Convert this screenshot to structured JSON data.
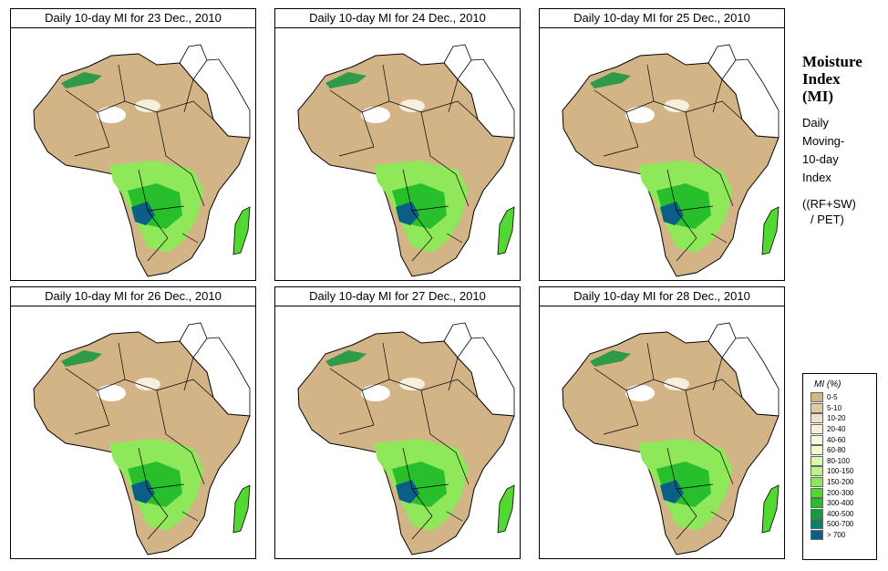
{
  "panels": [
    {
      "title": "Daily 10-day MI for  23 Dec., 2010"
    },
    {
      "title": "Daily 10-day MI for  24 Dec., 2010"
    },
    {
      "title": "Daily 10-day MI for  25 Dec., 2010"
    },
    {
      "title": "Daily 10-day MI for  26 Dec., 2010"
    },
    {
      "title": "Daily 10-day MI for  27 Dec., 2010"
    },
    {
      "title": "Daily 10-day MI for  28 Dec., 2010"
    }
  ],
  "side": {
    "title_line1": "Moisture",
    "title_line2": "Index",
    "title_line3": "(MI)",
    "desc_line1": "Daily",
    "desc_line2": "Moving-",
    "desc_line3": "10-day",
    "desc_line4": "Index",
    "formula_line1": "((RF+SW)",
    "formula_line2": "/ PET)"
  },
  "legend": {
    "title": "MI (%)",
    "items": [
      {
        "label": "0-5",
        "color": "#d2b487"
      },
      {
        "label": "5-10",
        "color": "#e0c9a6"
      },
      {
        "label": "10-20",
        "color": "#eee0c8"
      },
      {
        "label": "20-40",
        "color": "#f8eedd"
      },
      {
        "label": "40-60",
        "color": "#fbfbdc"
      },
      {
        "label": "60-80",
        "color": "#f1fac8"
      },
      {
        "label": "80-100",
        "color": "#ddf7ad"
      },
      {
        "label": "100-150",
        "color": "#bdf28a"
      },
      {
        "label": "150-200",
        "color": "#8ee85a"
      },
      {
        "label": "200-300",
        "color": "#52d830"
      },
      {
        "label": "300-400",
        "color": "#28be2c"
      },
      {
        "label": "400-500",
        "color": "#10a03a"
      },
      {
        "label": "500-700",
        "color": "#0b8062"
      },
      {
        "label": "> 700",
        "color": "#0b5e86"
      }
    ]
  }
}
